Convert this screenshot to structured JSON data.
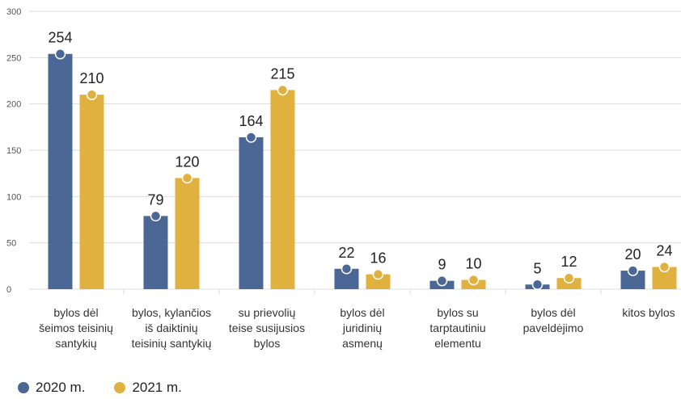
{
  "colors": {
    "series_2020": "#4b6795",
    "series_2021": "#e1b13f",
    "grid": "#dddddd"
  },
  "legend": [
    {
      "label": "2020 m.",
      "color": "#4b6795"
    },
    {
      "label": "2021 m.",
      "color": "#e1b13f"
    }
  ],
  "chart_data": {
    "type": "bar",
    "title": "",
    "xlabel": "",
    "ylabel": "",
    "ylim": [
      0,
      300
    ],
    "yticks": [
      0,
      50,
      100,
      150,
      200,
      250,
      300
    ],
    "grid": true,
    "legend_position": "bottom-left",
    "categories": [
      [
        "bylos dėl",
        "šeimos teisinių",
        "santykių"
      ],
      [
        "bylos, kylančios",
        "iš daiktinių",
        "teisinių santykių"
      ],
      [
        "su prievolių",
        "teise susijusios",
        "bylos"
      ],
      [
        "bylos dėl",
        "juridinių",
        "asmenų"
      ],
      [
        "bylos su",
        "tarptautiniu",
        "elementu"
      ],
      [
        "bylos dėl",
        "paveldėjimo"
      ],
      [
        "kitos bylos"
      ]
    ],
    "series": [
      {
        "name": "2020 m.",
        "values": [
          254,
          79,
          164,
          22,
          9,
          5,
          20
        ]
      },
      {
        "name": "2021 m.",
        "values": [
          210,
          120,
          215,
          16,
          10,
          12,
          24
        ]
      }
    ]
  }
}
